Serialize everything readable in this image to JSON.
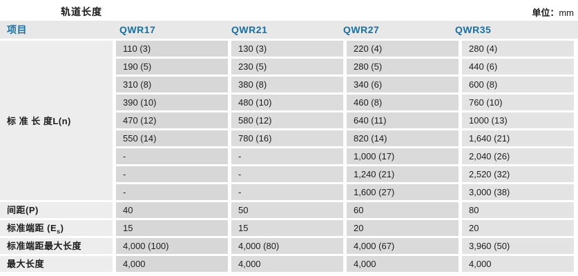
{
  "page": {
    "title": "轨道长度",
    "unit_prefix": "单位：",
    "unit_value": "mm"
  },
  "colors": {
    "header_text_blue": "#1470a5",
    "header_band": "#e8e8e8",
    "label_column_gray": "#ededed",
    "data_cell_gray": "#d9d9d9",
    "body_text": "#1c1c1c"
  },
  "table": {
    "header": {
      "item_label": "项目",
      "columns": [
        "QWR17",
        "QWR21",
        "QWR27",
        "QWR35"
      ]
    },
    "standard_length": {
      "label": "标 准 长 度L(n)",
      "rows": [
        [
          "110 (3)",
          "130 (3)",
          "220 (4)",
          "280 (4)"
        ],
        [
          "190 (5)",
          "230 (5)",
          "280 (5)",
          "440 (6)"
        ],
        [
          "310 (8)",
          "380 (8)",
          "340 (6)",
          "600 (8)"
        ],
        [
          "390 (10)",
          "480 (10)",
          "460 (8)",
          "760 (10)"
        ],
        [
          "470 (12)",
          "580 (12)",
          "640 (11)",
          "1000 (13)"
        ],
        [
          "550 (14)",
          "780 (16)",
          "820 (14)",
          "1,640 (21)"
        ],
        [
          "-",
          "-",
          "1,000 (17)",
          "2,040 (26)"
        ],
        [
          "-",
          "-",
          "1,240 (21)",
          "2,520 (32)"
        ],
        [
          "-",
          "-",
          "1,600 (27)",
          "3,000 (38)"
        ]
      ]
    },
    "spec_rows": [
      {
        "label": "间距(P)",
        "values": [
          "40",
          "50",
          "60",
          "80"
        ]
      },
      {
        "label_prefix": "标准端距 (E",
        "label_sub": "s",
        "label_suffix": ")",
        "values": [
          "15",
          "15",
          "20",
          "20"
        ]
      },
      {
        "label": "标准端距最大长度",
        "values": [
          "4,000 (100)",
          "4,000 (80)",
          "4,000 (67)",
          "3,960 (50)"
        ]
      },
      {
        "label": "最大长度",
        "values": [
          "4,000",
          "4,000",
          "4,000",
          "4,000"
        ]
      }
    ]
  }
}
